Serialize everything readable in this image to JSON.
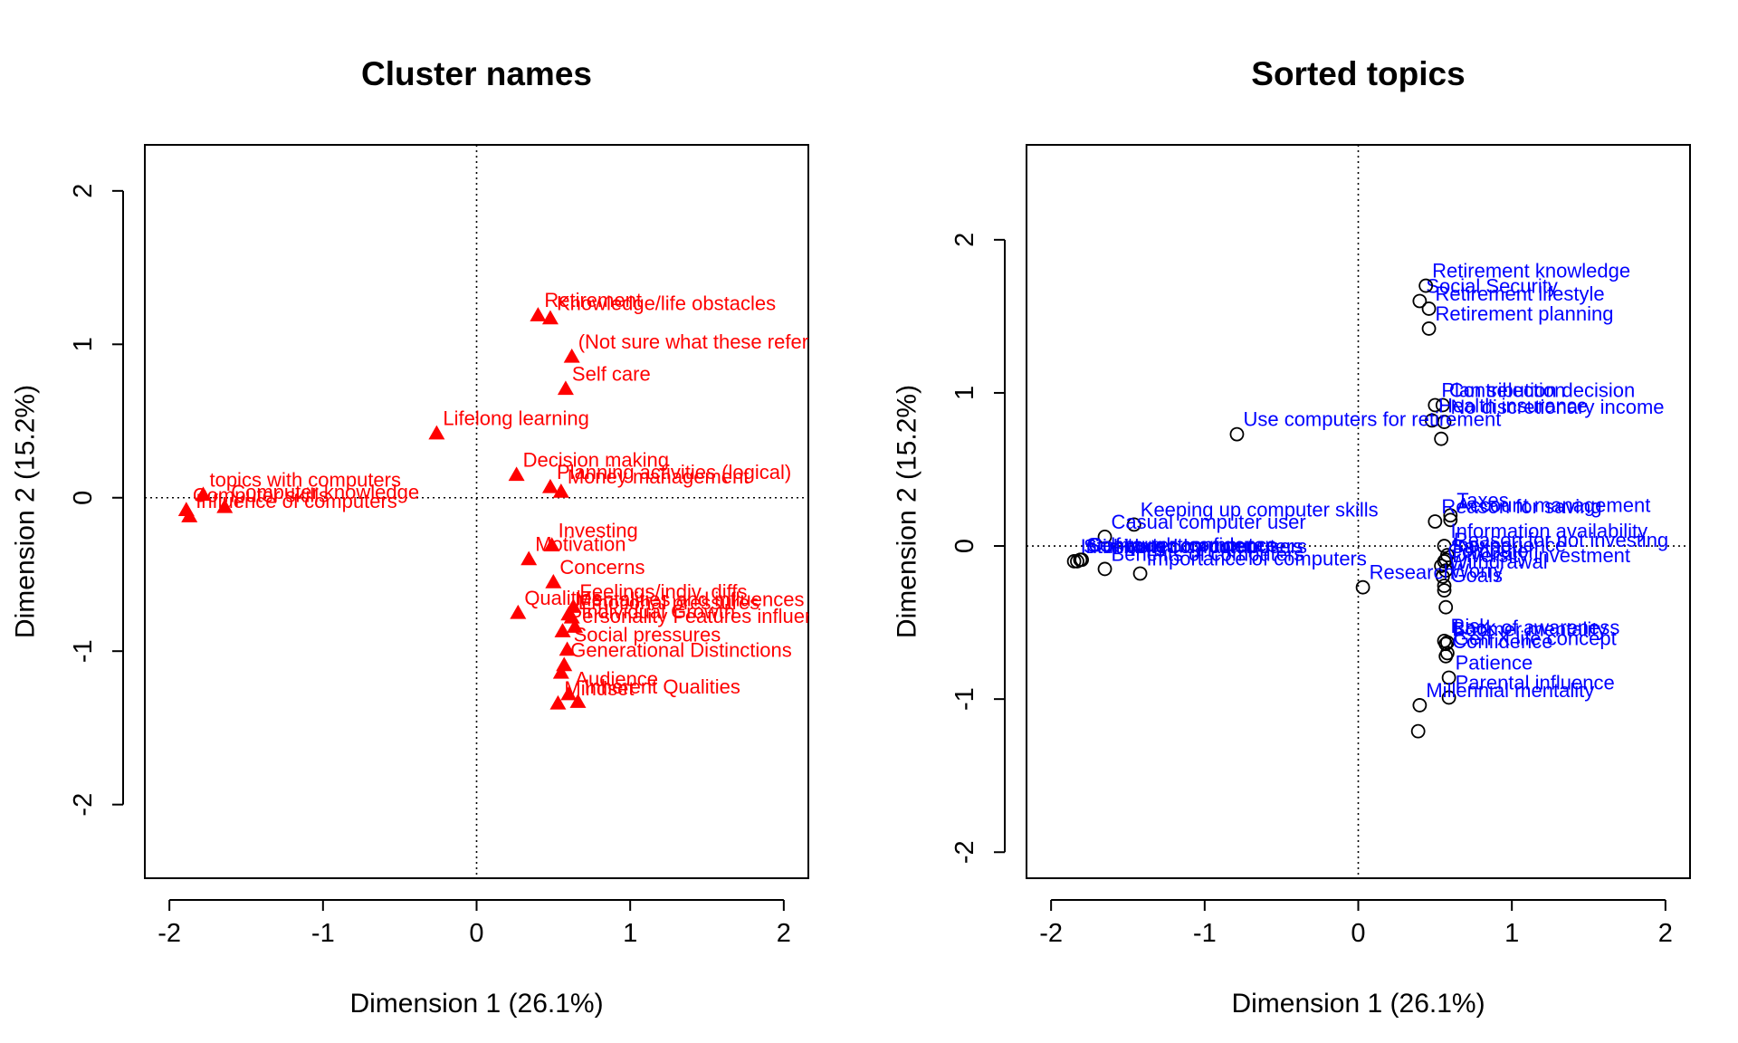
{
  "chart_data": [
    {
      "type": "scatter",
      "title": "Cluster names",
      "xlabel": "Dimension 1 (26.1%)",
      "ylabel": "Dimension 2 (15.2%)",
      "xlim": [
        -2.16,
        2.16
      ],
      "ylim": [
        -2.48,
        2.3
      ],
      "xticks": [
        -2,
        -1,
        0,
        1,
        2
      ],
      "yticks": [
        -2,
        -1,
        0,
        1,
        2
      ],
      "reference_lines": {
        "x": 0,
        "y": 0,
        "style": "dotted"
      },
      "grid": false,
      "marker": "triangle",
      "color": "#ff0000",
      "points": [
        {
          "label": "Retirement",
          "x": 0.4,
          "y": 1.19
        },
        {
          "label": "Knowledge/life obstacles",
          "x": 0.48,
          "y": 1.17
        },
        {
          "label": "(Not sure what these refer to ex",
          "x": 0.62,
          "y": 0.92
        },
        {
          "label": "Self care",
          "x": 0.58,
          "y": 0.71
        },
        {
          "label": "Lifelong learning",
          "x": -0.26,
          "y": 0.42
        },
        {
          "label": "Decision making",
          "x": 0.26,
          "y": 0.15
        },
        {
          "label": "Planning activities (logical)",
          "x": 0.48,
          "y": 0.07
        },
        {
          "label": "Money management",
          "x": 0.55,
          "y": 0.04
        },
        {
          "label": "topics with computers",
          "x": -1.78,
          "y": 0.02
        },
        {
          "label": "Computer skills",
          "x": -1.89,
          "y": -0.08
        },
        {
          "label": "Influence of computers",
          "x": -1.87,
          "y": -0.12
        },
        {
          "label": "Computer knowledge",
          "x": -1.64,
          "y": -0.06
        },
        {
          "label": "Investing",
          "x": 0.49,
          "y": -0.31
        },
        {
          "label": "Motivation",
          "x": 0.34,
          "y": -0.4
        },
        {
          "label": "Concerns",
          "x": 0.5,
          "y": -0.55
        },
        {
          "label": "Feelings/indiv. diffs",
          "x": 0.63,
          "y": -0.71
        },
        {
          "label": "Qualities",
          "x": 0.27,
          "y": -0.75
        },
        {
          "label": "Mentalities and influences for m",
          "x": 0.6,
          "y": -0.76
        },
        {
          "label": "Emotional pressures",
          "x": 0.62,
          "y": -0.78
        },
        {
          "label": "Individual Growth",
          "x": 0.64,
          "y": -0.84
        },
        {
          "label": "Personality Features influencing",
          "x": 0.56,
          "y": -0.87
        },
        {
          "label": "Social pressures",
          "x": 0.59,
          "y": -0.99
        },
        {
          "label": "Generational Distinctions",
          "x": 0.57,
          "y": -1.09
        },
        {
          "label": "",
          "x": 0.55,
          "y": -1.14
        },
        {
          "label": "Audience",
          "x": 0.6,
          "y": -1.28
        },
        {
          "label": "Mindset",
          "x": 0.53,
          "y": -1.34
        },
        {
          "label": "Inherent Qualities",
          "x": 0.66,
          "y": -1.33
        }
      ]
    },
    {
      "type": "scatter",
      "title": "Sorted topics",
      "xlabel": "Dimension 1 (26.1%)",
      "ylabel": "Dimension 2 (15.2%)",
      "xlim": [
        -2.16,
        2.16
      ],
      "ylim": [
        -2.17,
        2.62
      ],
      "xticks": [
        -2,
        -1,
        0,
        1,
        2
      ],
      "yticks": [
        -2,
        -1,
        0,
        1,
        2
      ],
      "reference_lines": {
        "x": 0,
        "y": 0,
        "style": "dotted"
      },
      "grid": false,
      "marker": "open-circle",
      "color": "#0000ff",
      "points": [
        {
          "label": "Social Security",
          "x": 0.4,
          "y": 1.6
        },
        {
          "label": "Retirement knowledge",
          "x": 0.44,
          "y": 1.7
        },
        {
          "label": "Retirement lifestyle",
          "x": 0.46,
          "y": 1.55
        },
        {
          "label": "Retirement planning",
          "x": 0.46,
          "y": 1.42
        },
        {
          "label": "Plan selection",
          "x": 0.5,
          "y": 0.92
        },
        {
          "label": "Contribution decision",
          "x": 0.55,
          "y": 0.92
        },
        {
          "label": "Health insurance",
          "x": 0.48,
          "y": 0.82
        },
        {
          "label": "No discretionary income",
          "x": 0.56,
          "y": 0.81
        },
        {
          "label": "",
          "x": 0.54,
          "y": 0.7
        },
        {
          "label": "Use computers for retirement",
          "x": -0.79,
          "y": 0.73
        },
        {
          "label": "Keeping up computer skills",
          "x": -1.46,
          "y": 0.14
        },
        {
          "label": "Casual computer user",
          "x": -1.65,
          "y": 0.06
        },
        {
          "label": "Taxes",
          "x": 0.6,
          "y": 0.2
        },
        {
          "label": "Account management",
          "x": 0.6,
          "y": 0.17
        },
        {
          "label": "Reason for saving",
          "x": 0.5,
          "y": 0.16
        },
        {
          "label": "Information availability",
          "x": 0.56,
          "y": 0.0
        },
        {
          "label": "Reason for not investing",
          "x": 0.58,
          "y": -0.06
        },
        {
          "label": "Inexperience",
          "x": 0.57,
          "y": -0.09
        },
        {
          "label": "Saving",
          "x": 0.56,
          "y": -0.1
        },
        {
          "label": "Computer",
          "x": 0.54,
          "y": -0.13
        },
        {
          "label": "Diversity investment",
          "x": 0.57,
          "y": -0.16
        },
        {
          "label": "Withdrawal",
          "x": 0.55,
          "y": -0.2
        },
        {
          "label": "Research",
          "x": 0.03,
          "y": -0.27
        },
        {
          "label": "Worry",
          "x": 0.56,
          "y": -0.26
        },
        {
          "label": "Goals",
          "x": 0.56,
          "y": -0.29
        },
        {
          "label": "",
          "x": 0.57,
          "y": -0.4
        },
        {
          "label": "Risk",
          "x": 0.56,
          "y": -0.62
        },
        {
          "label": "Lack of awareness",
          "x": 0.58,
          "y": -0.63
        },
        {
          "label": "Boomer mentality",
          "x": 0.57,
          "y": -0.64
        },
        {
          "label": "Gen X life concept",
          "x": 0.58,
          "y": -0.7
        },
        {
          "label": "Confidence",
          "x": 0.57,
          "y": -0.72
        },
        {
          "label": "Patience",
          "x": 0.59,
          "y": -0.86
        },
        {
          "label": "Parental influence",
          "x": 0.59,
          "y": -0.99
        },
        {
          "label": "Millennial mentality",
          "x": 0.4,
          "y": -1.04
        },
        {
          "label": "",
          "x": 0.39,
          "y": -1.21
        },
        {
          "label": "Intimidated by computers",
          "x": -1.85,
          "y": -0.1
        },
        {
          "label": "Stubborn computer users",
          "x": -1.83,
          "y": -0.1
        },
        {
          "label": "Self-taught computer",
          "x": -1.81,
          "y": -0.09
        },
        {
          "label": "Computer confidence",
          "x": -1.8,
          "y": -0.09
        },
        {
          "label": "Benefits of computers",
          "x": -1.65,
          "y": -0.15
        },
        {
          "label": "Importance of computers",
          "x": -1.42,
          "y": -0.18
        }
      ]
    }
  ]
}
